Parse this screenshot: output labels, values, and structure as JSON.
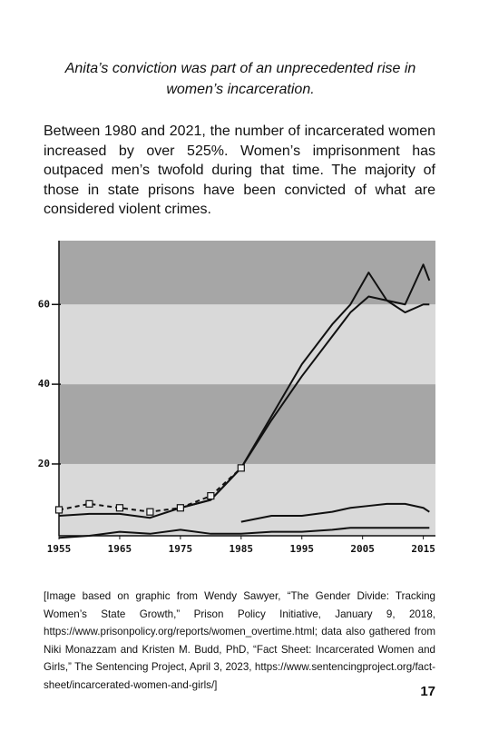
{
  "heading": "Anita’s conviction was part of an unprecedented rise in women’s incarceration.",
  "body": "Between 1980 and 2021, the number of incarcerated women increased by over 525%. Women’s imprisonment has outpaced men’s twofold during that time. The majority of those in state prisons have been convicted of what are considered violent crimes.",
  "chart_data": {
    "type": "line",
    "x": [
      1955,
      1960,
      1965,
      1970,
      1975,
      1980,
      1985,
      1990,
      1995,
      2000,
      2003,
      2006,
      2009,
      2012,
      2015,
      2016
    ],
    "series": [
      {
        "color": "#111111",
        "values": [
          7,
          7.5,
          7.5,
          6.5,
          9,
          11,
          19,
          32,
          45,
          55,
          60,
          68,
          61,
          60,
          70,
          66
        ]
      },
      {
        "color": "#111111",
        "values": [
          null,
          null,
          null,
          null,
          9,
          11,
          19,
          31,
          42,
          52,
          58,
          62,
          61,
          58,
          60,
          60
        ]
      },
      {
        "color": "#111111",
        "values": [
          null,
          null,
          null,
          null,
          null,
          null,
          5.5,
          7,
          7,
          8,
          9,
          9.5,
          10,
          10,
          9,
          8
        ]
      },
      {
        "color": "#111111",
        "values": [
          1.5,
          2,
          3,
          2.5,
          3.5,
          2.5,
          2.5,
          3,
          3,
          3.5,
          4,
          4,
          4,
          4,
          4,
          4
        ]
      },
      {
        "color": "#111111",
        "dashed": true,
        "values": [
          8.5,
          10,
          9,
          8,
          9,
          12,
          19,
          null,
          null,
          null,
          null,
          null,
          null,
          null,
          null,
          null
        ]
      }
    ],
    "xlim": [
      1955,
      2017
    ],
    "xticks": [
      1955,
      1965,
      1975,
      1985,
      1995,
      2005,
      2015
    ],
    "ylim": [
      2,
      76
    ],
    "yticks": [
      20,
      40,
      60
    ],
    "bands": [
      "#a6a6a6",
      "#d9d9d9"
    ]
  },
  "caption": "[Image based on graphic from Wendy Sawyer, “The Gender Divide: Tracking Women’s State Growth,” Prison Policy Initiative, January 9, 2018, https://www.prisonpolicy.org/reports/women_overtime.html; data also gathered from Niki Monazzam and Kristen M. Budd, PhD, “Fact Sheet: Incarcerated Women and Girls,” The Sentencing Project, April 3, 2023, https://www.sentencingproject.org/fact-sheet/incarcerated-women-and-girls/]",
  "page_number": "17"
}
